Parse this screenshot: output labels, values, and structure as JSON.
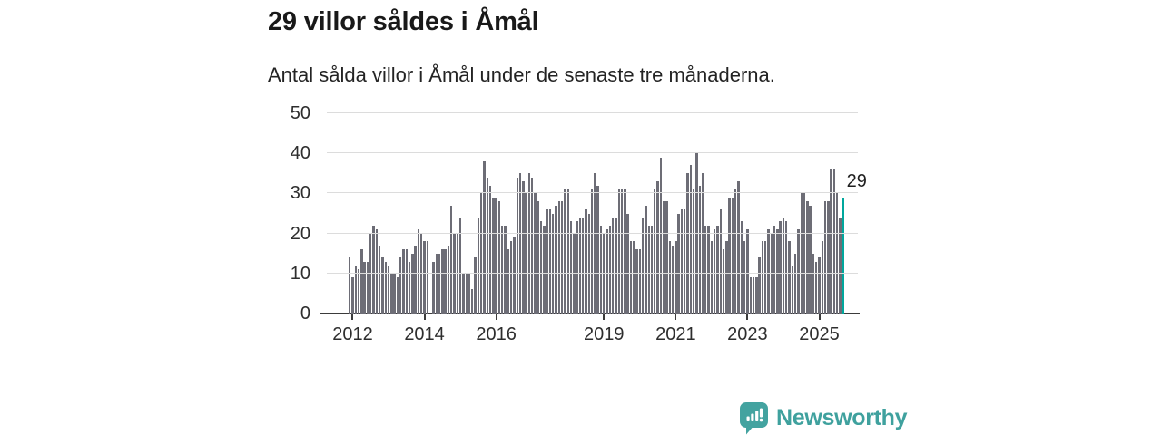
{
  "header": {
    "title": "29 villor såldes i Åmål",
    "subtitle": "Antal sålda villor i Åmål under de senaste tre månaderna."
  },
  "chart_data": {
    "type": "bar",
    "title": "29 villor såldes i Åmål",
    "subtitle": "Antal sålda villor i Åmål under de senaste tre månaderna.",
    "ylabel": "",
    "xlabel": "",
    "ylim": [
      0,
      50
    ],
    "yticks": [
      0,
      10,
      20,
      30,
      40,
      50
    ],
    "grid": true,
    "bar_color": "#6d6d76",
    "gridline_color": "#dcdcdc",
    "axis_color": "#3b3b3b",
    "xticks": [
      {
        "label": "2012",
        "index": 1
      },
      {
        "label": "2014",
        "index": 25
      },
      {
        "label": "2016",
        "index": 49
      },
      {
        "label": "2019",
        "index": 85
      },
      {
        "label": "2021",
        "index": 109
      },
      {
        "label": "2023",
        "index": 133
      },
      {
        "label": "2025",
        "index": 157
      }
    ],
    "values": [
      14,
      9,
      12,
      11,
      16,
      13,
      13,
      20,
      22,
      21,
      17,
      14,
      13,
      12,
      10,
      10,
      9,
      14,
      16,
      16,
      13,
      15,
      17,
      21,
      20,
      18,
      18,
      0,
      13,
      15,
      15,
      16,
      16,
      17,
      27,
      20,
      20,
      24,
      10,
      10,
      10,
      6,
      14,
      24,
      30,
      38,
      34,
      32,
      29,
      29,
      28,
      22,
      22,
      16,
      18,
      19,
      34,
      35,
      33,
      30,
      35,
      34,
      30,
      28,
      23,
      22,
      26,
      26,
      25,
      27,
      28,
      28,
      31,
      31,
      23,
      20,
      23,
      24,
      24,
      26,
      25,
      31,
      35,
      32,
      22,
      20,
      21,
      22,
      24,
      24,
      31,
      31,
      31,
      25,
      18,
      18,
      16,
      16,
      24,
      27,
      22,
      22,
      31,
      33,
      39,
      28,
      28,
      18,
      17,
      18,
      25,
      26,
      26,
      35,
      37,
      31,
      40,
      32,
      35,
      22,
      22,
      18,
      21,
      22,
      26,
      16,
      18,
      29,
      29,
      31,
      33,
      23,
      18,
      21,
      9,
      9,
      9,
      14,
      18,
      18,
      21,
      20,
      22,
      21,
      23,
      24,
      23,
      18,
      12,
      15,
      21,
      30,
      30,
      28,
      27,
      15,
      13,
      14,
      18,
      28,
      28,
      36,
      36,
      30,
      24,
      29
    ],
    "highlight": {
      "index": 165,
      "value": 29,
      "label": "29",
      "color": "#00a79d"
    }
  },
  "footer": {
    "brand": "Newsworthy",
    "brand_color": "#3fa19e",
    "logo_icon": "newsworthy-speech-bubble-chart-icon"
  }
}
